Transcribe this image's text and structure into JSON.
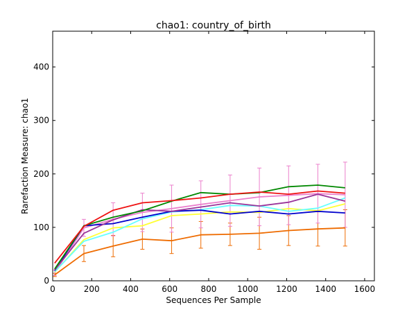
{
  "chart_data": {
    "type": "line",
    "title": "chao1: country_of_birth",
    "xlabel": "Sequences Per Sample",
    "ylabel": "Rarefaction Measure: chao1",
    "xlim": [
      0,
      1650
    ],
    "ylim": [
      0,
      467
    ],
    "xticks": [
      0,
      200,
      400,
      600,
      800,
      1000,
      1200,
      1400,
      1600
    ],
    "yticks": [
      0,
      100,
      200,
      300,
      400
    ],
    "grid": false,
    "x": [
      10,
      160,
      310,
      460,
      610,
      760,
      910,
      1060,
      1210,
      1360,
      1500
    ],
    "series": [
      {
        "color": "#ee6b00",
        "values": [
          11,
          51,
          65,
          78,
          75,
          86,
          87,
          89,
          94,
          97,
          99
        ],
        "err": [
          3,
          15,
          20,
          19,
          24,
          25,
          21,
          30,
          28,
          32,
          34
        ]
      },
      {
        "color": "#eb80cc",
        "values": [
          15,
          99,
          115,
          128,
          135,
          143,
          150,
          157,
          160,
          163,
          161
        ],
        "err": [
          5,
          16,
          31,
          36,
          44,
          44,
          48,
          54,
          55,
          55,
          61
        ]
      },
      {
        "color": "#ffff33",
        "values": [
          16,
          77,
          99,
          103,
          122,
          125,
          129,
          128,
          135,
          131,
          144
        ]
      },
      {
        "color": "#66ffff",
        "values": [
          17,
          74,
          91,
          116,
          129,
          133,
          141,
          140,
          130,
          136,
          155
        ]
      },
      {
        "color": "#0000cc",
        "values": [
          19,
          103,
          107,
          119,
          130,
          132,
          125,
          130,
          125,
          130,
          127
        ]
      },
      {
        "color": "#993399",
        "values": [
          20,
          89,
          114,
          133,
          130,
          138,
          146,
          140,
          147,
          162,
          149
        ]
      },
      {
        "color": "#008800",
        "values": [
          22,
          103,
          119,
          131,
          149,
          165,
          162,
          165,
          176,
          179,
          174
        ]
      },
      {
        "color": "#ee1111",
        "values": [
          33,
          102,
          132,
          146,
          150,
          155,
          162,
          166,
          162,
          168,
          164
        ]
      }
    ]
  }
}
